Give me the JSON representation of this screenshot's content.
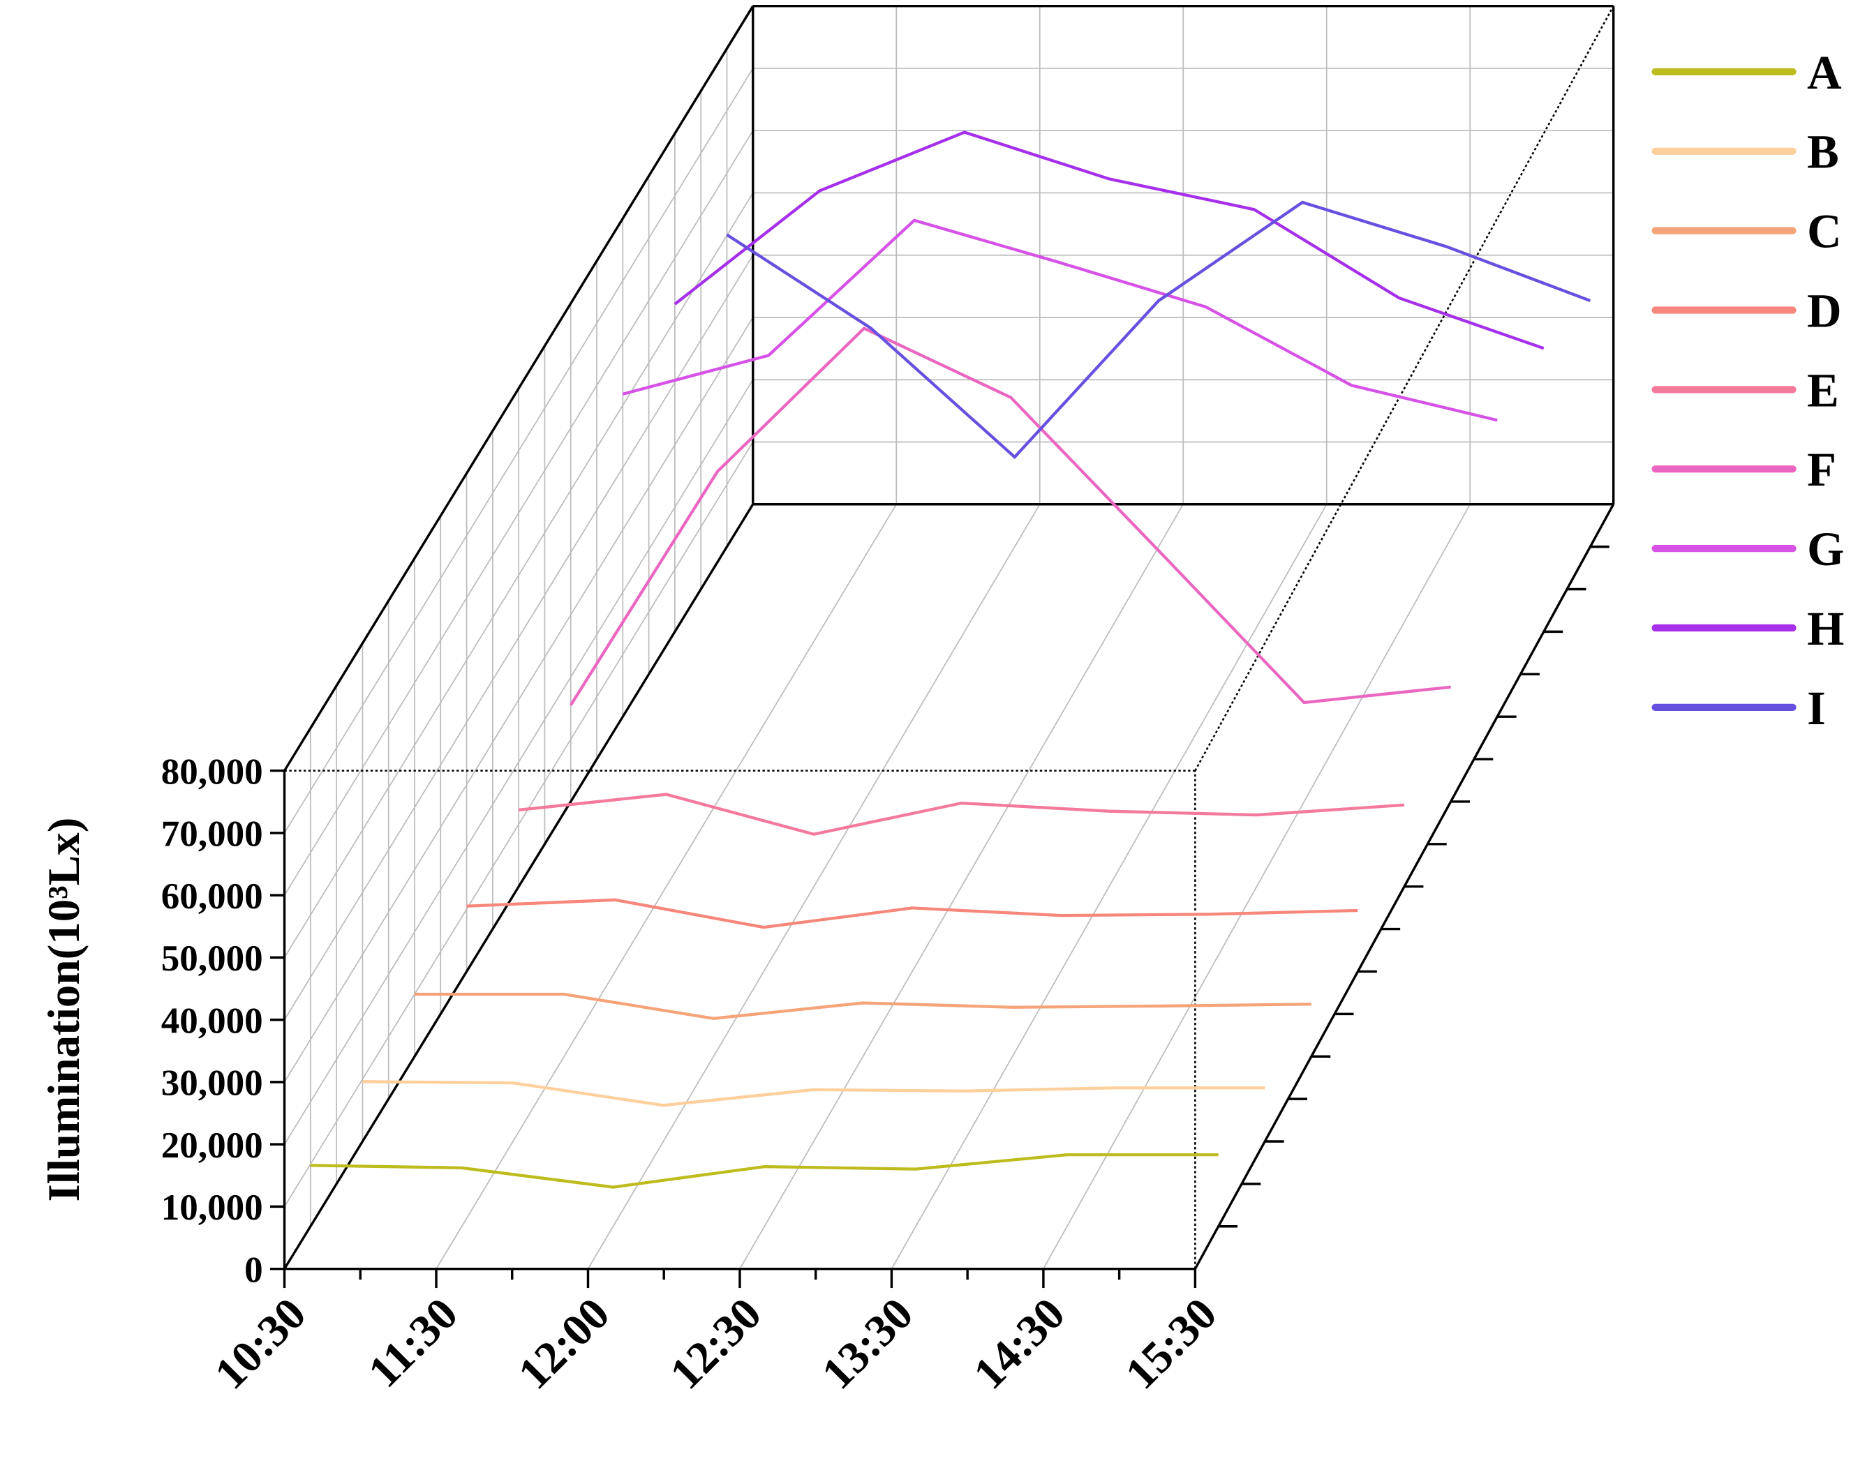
{
  "chart_data": {
    "type": "line3d",
    "y_label": "Illumination(10³Lx)",
    "categories": [
      "10:30",
      "11:30",
      "12:00",
      "12:30",
      "13:30",
      "14:30",
      "15:30"
    ],
    "ylim": [
      0,
      80000
    ],
    "yticks": [
      {
        "value": 0,
        "label": "0"
      },
      {
        "value": 10000,
        "label": "10,000"
      },
      {
        "value": 20000,
        "label": "20,000"
      },
      {
        "value": 30000,
        "label": "30,000"
      },
      {
        "value": 40000,
        "label": "40,000"
      },
      {
        "value": 50000,
        "label": "50,000"
      },
      {
        "value": 60000,
        "label": "60,000"
      },
      {
        "value": 70000,
        "label": "70,000"
      },
      {
        "value": 80000,
        "label": "80,000"
      }
    ],
    "grid": true,
    "legend": "right",
    "series": [
      {
        "name": "A",
        "color": "#bcbc1c",
        "values": [
          9800,
          9400,
          6300,
          9600,
          9200,
          11500,
          11500
        ]
      },
      {
        "name": "B",
        "color": "#ffcf9c",
        "values": [
          9600,
          9400,
          5800,
          8300,
          8100,
          8600,
          8600
        ]
      },
      {
        "name": "C",
        "color": "#f5a47a",
        "values": [
          10000,
          10000,
          6100,
          8600,
          7900,
          8100,
          8400
        ]
      },
      {
        "name": "D",
        "color": "#f6877a",
        "values": [
          10500,
          11500,
          7100,
          10200,
          9000,
          9200,
          9800
        ]
      },
      {
        "name": "E",
        "color": "#f47a9c",
        "values": [
          12300,
          14800,
          8400,
          13400,
          12100,
          11500,
          13100
        ]
      },
      {
        "name": "F",
        "color": "#ea66c0",
        "values": [
          15500,
          53000,
          76000,
          64900,
          40500,
          15900,
          18400
        ]
      },
      {
        "name": "G",
        "color": "#d652e6",
        "values": [
          51800,
          58000,
          79700,
          72900,
          65800,
          53200,
          47600
        ]
      },
      {
        "name": "H",
        "color": "#a52fea",
        "values": [
          52600,
          70800,
          80200,
          72700,
          67800,
          53600,
          45500
        ]
      },
      {
        "name": "I",
        "color": "#6650e0",
        "values": [
          50100,
          35100,
          14400,
          39500,
          55300,
          48200,
          39500
        ]
      }
    ]
  }
}
